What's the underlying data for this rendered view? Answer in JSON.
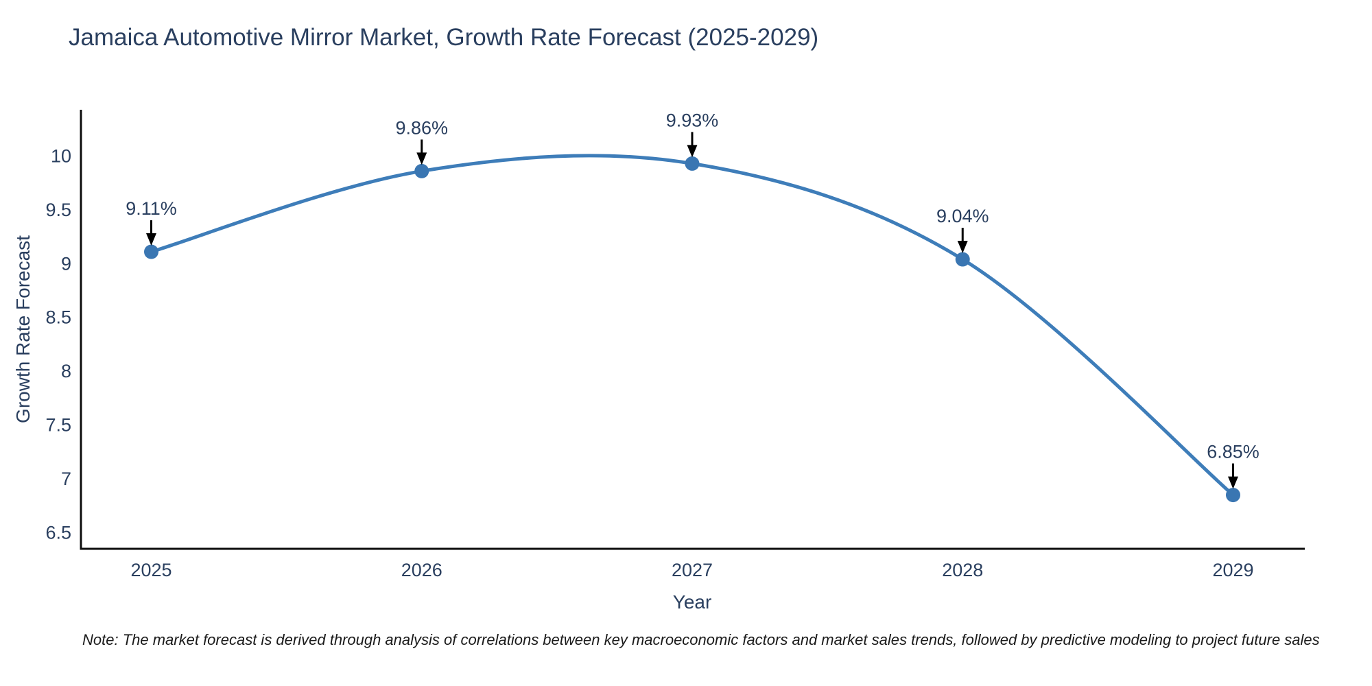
{
  "chart": {
    "title": "Jamaica Automotive Mirror Market, Growth Rate Forecast (2025-2029)",
    "note": "Note: The market forecast is derived through analysis of correlations between key macroeconomic factors and market sales trends, followed by predictive modeling to project future sales"
  },
  "chart_data": {
    "type": "line",
    "line_shape": "spline",
    "title": "Jamaica Automotive Mirror Market, Growth Rate Forecast (2025-2029)",
    "xlabel": "Year",
    "ylabel": "Growth Rate Forecast",
    "x": [
      2025,
      2026,
      2027,
      2028,
      2029
    ],
    "values": [
      9.11,
      9.86,
      9.93,
      9.04,
      6.85
    ],
    "point_labels": [
      "9.11%",
      "9.86%",
      "9.93%",
      "9.04%",
      "6.85%"
    ],
    "yticks": [
      10,
      9.5,
      9,
      8.5,
      8,
      7.5,
      7,
      6.5
    ],
    "xlim": [
      2024.74,
      2029.26
    ],
    "ylim": [
      6.35,
      10.43
    ],
    "grid": false,
    "legend": "none",
    "line_color": "#3e7db9",
    "marker_color": "#3a76b2",
    "arrow_color": "#000000",
    "axis_color": "#0d0d0d",
    "text_color": "#2a3f5f"
  }
}
